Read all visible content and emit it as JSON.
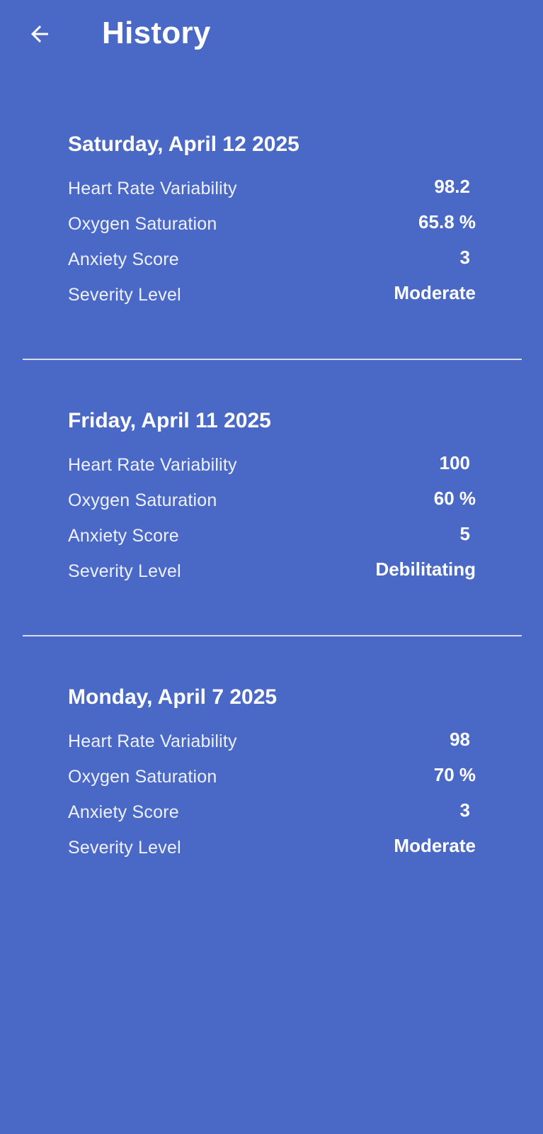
{
  "header": {
    "back_icon": "arrow-left-icon",
    "title": "History"
  },
  "entries": [
    {
      "date": "Saturday, April 12 2025",
      "hrv_label": "Heart Rate Variability",
      "hrv_value": "98.2",
      "oxygen_label": "Oxygen Saturation",
      "oxygen_value": "65.8 %",
      "anxiety_label": "Anxiety Score",
      "anxiety_value": "3",
      "severity_label": "Severity Level",
      "severity_value": "Moderate"
    },
    {
      "date": "Friday, April 11 2025",
      "hrv_label": "Heart Rate Variability",
      "hrv_value": "100",
      "oxygen_label": "Oxygen Saturation",
      "oxygen_value": "60 %",
      "anxiety_label": "Anxiety Score",
      "anxiety_value": "5",
      "severity_label": "Severity Level",
      "severity_value": "Debilitating"
    },
    {
      "date": "Monday, April 7 2025",
      "hrv_label": "Heart Rate Variability",
      "hrv_value": "98",
      "oxygen_label": "Oxygen Saturation",
      "oxygen_value": "70 %",
      "anxiety_label": "Anxiety Score",
      "anxiety_value": "3",
      "severity_label": "Severity Level",
      "severity_value": "Moderate"
    }
  ],
  "colors": {
    "background": "#4a69c7",
    "text": "#ffffff",
    "divider": "#d7def4"
  }
}
